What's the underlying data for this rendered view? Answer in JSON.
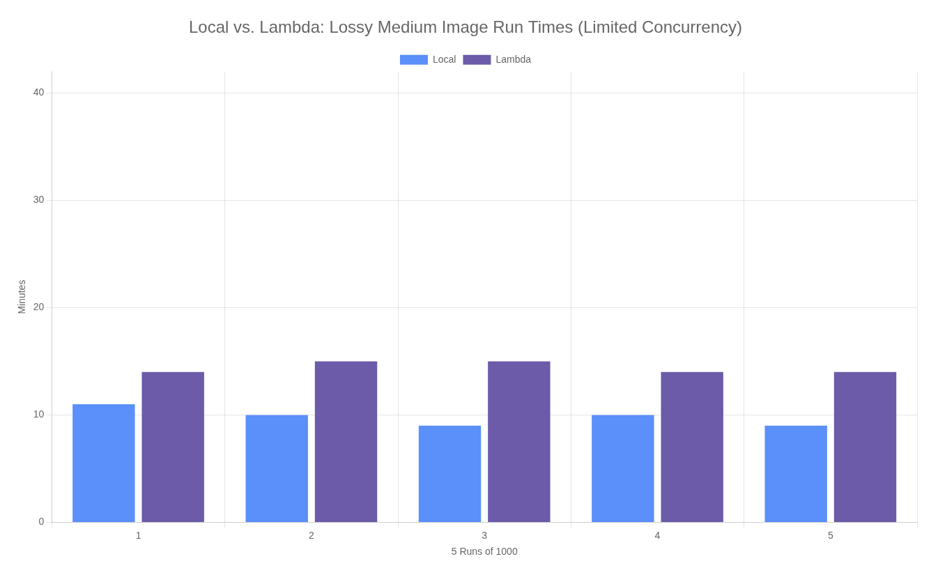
{
  "chart_data": {
    "type": "bar",
    "title": "Local vs. Lambda: Lossy Medium Image Run Times (Limited Concurrency)",
    "xlabel": "5 Runs of 1000",
    "ylabel": "Minutes",
    "categories": [
      1,
      2,
      3,
      4,
      5
    ],
    "series": [
      {
        "name": "Local",
        "color": "#5b8ff9",
        "values": [
          11,
          10,
          9,
          10,
          9
        ]
      },
      {
        "name": "Lambda",
        "color": "#6b5ba8",
        "values": [
          14,
          15,
          15,
          14,
          14
        ]
      }
    ],
    "ylim": [
      0,
      42
    ],
    "yticks": [
      0,
      10,
      20,
      30,
      40
    ],
    "grid": true,
    "legend": "top"
  }
}
